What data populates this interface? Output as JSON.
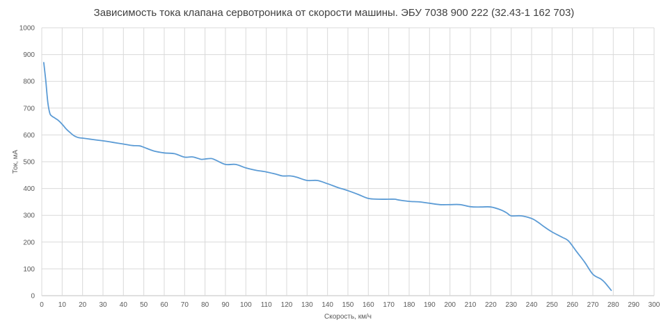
{
  "chart_data": {
    "type": "line",
    "title": "Зависимость тока клапана сервотроника от скорости машины. ЭБУ 7038 900 222 (32.43-1 162 703)",
    "xlabel": "Скорость, км/ч",
    "ylabel": "Ток, мА",
    "xlim": [
      0,
      300
    ],
    "ylim": [
      0,
      1000
    ],
    "x_ticks": [
      "0",
      "10",
      "20",
      "30",
      "40",
      "50",
      "60",
      "70",
      "80",
      "90",
      "100",
      "110",
      "120",
      "130",
      "140",
      "150",
      "160",
      "170",
      "180",
      "190",
      "200",
      "210",
      "220",
      "230",
      "240",
      "250",
      "260",
      "270",
      "280",
      "290",
      "300"
    ],
    "y_ticks": [
      "0",
      "100",
      "200",
      "300",
      "400",
      "500",
      "600",
      "700",
      "800",
      "900",
      "1000"
    ],
    "grid": true,
    "line_color": "#5B9BD5",
    "series": [
      {
        "x": [
          1,
          2,
          3,
          4,
          5,
          6,
          8,
          10,
          12,
          14,
          16,
          18,
          20,
          25,
          30,
          35,
          40,
          43,
          45,
          48,
          50,
          55,
          60,
          65,
          70,
          74,
          78,
          80,
          83,
          85,
          90,
          95,
          100,
          105,
          110,
          115,
          118,
          122,
          125,
          130,
          135,
          140,
          145,
          150,
          155,
          160,
          165,
          170,
          173,
          175,
          180,
          185,
          190,
          195,
          200,
          205,
          210,
          215,
          220,
          225,
          228,
          230,
          235,
          240,
          243,
          246,
          250,
          255,
          258,
          262,
          266,
          270,
          274,
          276,
          279
        ],
        "y": [
          870,
          800,
          720,
          680,
          670,
          665,
          655,
          640,
          622,
          608,
          596,
          590,
          588,
          583,
          578,
          572,
          566,
          562,
          560,
          559,
          554,
          540,
          533,
          530,
          517,
          518,
          509,
          510,
          512,
          507,
          490,
          490,
          477,
          468,
          462,
          453,
          447,
          447,
          442,
          430,
          430,
          418,
          404,
          392,
          378,
          363,
          360,
          360,
          360,
          357,
          352,
          350,
          345,
          340,
          340,
          340,
          332,
          331,
          331,
          320,
          308,
          298,
          298,
          288,
          275,
          258,
          238,
          218,
          205,
          165,
          125,
          80,
          62,
          48,
          20
        ]
      }
    ]
  }
}
